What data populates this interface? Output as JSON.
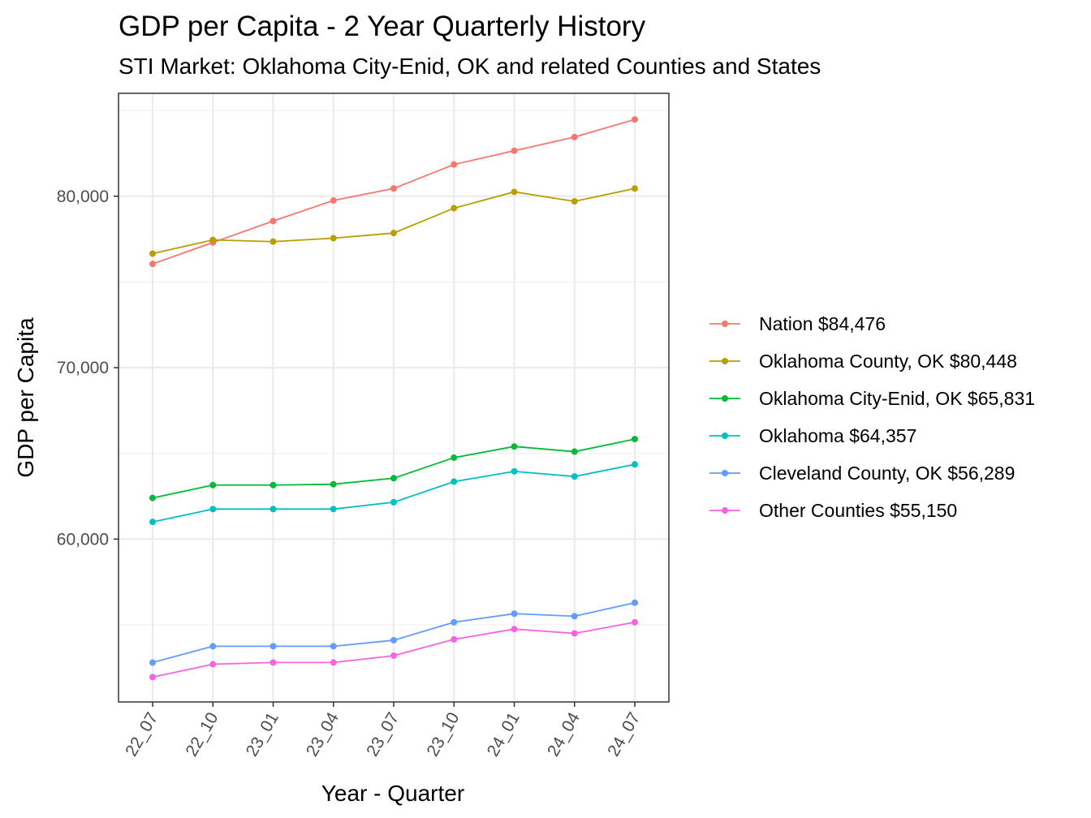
{
  "chart_data": {
    "type": "line",
    "title": "GDP per Capita - 2 Year Quarterly History",
    "subtitle": "STI Market: Oklahoma City-Enid, OK and related Counties and States",
    "xlabel": "Year - Quarter",
    "ylabel": "GDP per Capita",
    "categories": [
      "22_07",
      "22_10",
      "23_01",
      "23_04",
      "23_07",
      "23_10",
      "24_01",
      "24_04",
      "24_07"
    ],
    "ylim": [
      50500,
      86000
    ],
    "yticks": [
      {
        "value": 60000,
        "label": "60,000"
      },
      {
        "value": 70000,
        "label": "70,000"
      },
      {
        "value": 80000,
        "label": "80,000"
      }
    ],
    "yminor": [
      55000,
      65000,
      75000,
      85000
    ],
    "grid": true,
    "legend_position": "right",
    "series": [
      {
        "name": "Nation",
        "label": "Nation $84,476",
        "color": "#F8766D",
        "values": [
          76050,
          77300,
          78550,
          79750,
          80450,
          81850,
          82650,
          83450,
          84476
        ]
      },
      {
        "name": "Oklahoma County, OK",
        "label": "Oklahoma County, OK $80,448",
        "color": "#B79F00",
        "values": [
          76650,
          77450,
          77350,
          77550,
          77850,
          79300,
          80250,
          79700,
          80448
        ]
      },
      {
        "name": "Oklahoma City-Enid, OK",
        "label": "Oklahoma City-Enid, OK $65,831",
        "color": "#00BA38",
        "values": [
          62400,
          63150,
          63150,
          63200,
          63550,
          64750,
          65400,
          65100,
          65831
        ]
      },
      {
        "name": "Oklahoma",
        "label": "Oklahoma $64,357",
        "color": "#00BFC4",
        "values": [
          61000,
          61750,
          61750,
          61750,
          62150,
          63350,
          63950,
          63650,
          64357
        ]
      },
      {
        "name": "Cleveland County, OK",
        "label": "Cleveland County, OK $56,289",
        "color": "#619CFF",
        "values": [
          52800,
          53750,
          53750,
          53750,
          54100,
          55150,
          55650,
          55500,
          56289
        ]
      },
      {
        "name": "Other Counties",
        "label": "Other Counties $55,150",
        "color": "#F564E3",
        "values": [
          51950,
          52700,
          52800,
          52800,
          53200,
          54150,
          54750,
          54500,
          55150
        ]
      }
    ]
  }
}
